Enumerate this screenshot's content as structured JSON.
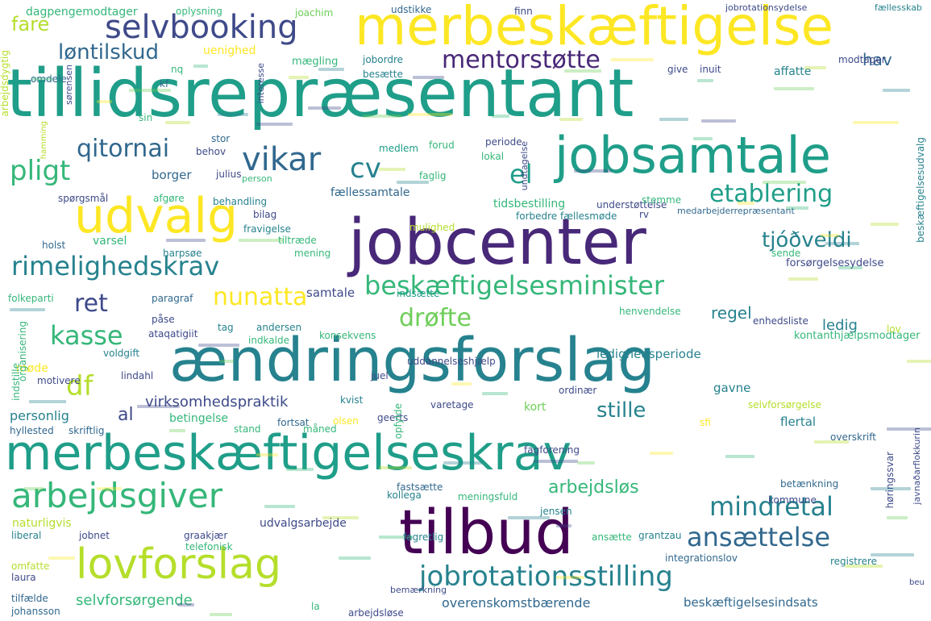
{
  "palette": {
    "dark_purple": "#440154",
    "purple": "#482878",
    "indigo": "#3e4a89",
    "blue": "#31688e",
    "teal": "#26828e",
    "teal_green": "#1f9e89",
    "green": "#35b779",
    "light_green": "#6ece58",
    "lime": "#b5de2b",
    "yellow": "#fde725"
  },
  "words": [
    {
      "text": "merbeskæftigelse",
      "color": "#fde725"
    },
    {
      "text": "tillidsrepræsentant",
      "color": "#1f9e89"
    },
    {
      "text": "selvbooking",
      "color": "#3e4a89"
    },
    {
      "text": "fare",
      "color": "#b5de2b"
    },
    {
      "text": "løntilskud",
      "color": "#31688e"
    },
    {
      "text": "mentorstøtte",
      "color": "#482878"
    },
    {
      "text": "hav",
      "color": "#31688e"
    },
    {
      "text": "uenighed",
      "color": "#fde725"
    },
    {
      "text": "mægling",
      "color": "#35b779"
    },
    {
      "text": "affatte",
      "color": "#26828e"
    },
    {
      "text": "jobsamtale",
      "color": "#1f9e89"
    },
    {
      "text": "qitornai",
      "color": "#31688e"
    },
    {
      "text": "vikar",
      "color": "#31688e"
    },
    {
      "text": "cv",
      "color": "#26828e"
    },
    {
      "text": "el",
      "color": "#1f9e89"
    },
    {
      "text": "pligt",
      "color": "#35b779"
    },
    {
      "text": "udvalg",
      "color": "#fde725"
    },
    {
      "text": "etablering",
      "color": "#1f9e89"
    },
    {
      "text": "borger",
      "color": "#31688e"
    },
    {
      "text": "jobcenter",
      "color": "#482878"
    },
    {
      "text": "tjóðveldi",
      "color": "#26828e"
    },
    {
      "text": "rimelighedskrav",
      "color": "#26828e"
    },
    {
      "text": "beskæftigelsesminister",
      "color": "#35b779"
    },
    {
      "text": "nunatta",
      "color": "#fde725"
    },
    {
      "text": "ret",
      "color": "#3e4a89"
    },
    {
      "text": "drøfte",
      "color": "#6ece58"
    },
    {
      "text": "kasse",
      "color": "#35b779"
    },
    {
      "text": "regel",
      "color": "#26828e"
    },
    {
      "text": "ledig",
      "color": "#26828e"
    },
    {
      "text": "ændringsforslag",
      "color": "#26828e"
    },
    {
      "text": "df",
      "color": "#b5de2b"
    },
    {
      "text": "virksomhedspraktik",
      "color": "#3e4a89"
    },
    {
      "text": "stille",
      "color": "#26828e"
    },
    {
      "text": "personlig",
      "color": "#26828e"
    },
    {
      "text": "merbeskæftigelseskrav",
      "color": "#1f9e89"
    },
    {
      "text": "arbejdsgiver",
      "color": "#35b779"
    },
    {
      "text": "arbejdsløs",
      "color": "#35b779"
    },
    {
      "text": "mindretal",
      "color": "#26828e"
    },
    {
      "text": "tilbud",
      "color": "#440154"
    },
    {
      "text": "ansættelse",
      "color": "#31688e"
    },
    {
      "text": "lovforslag",
      "color": "#b5de2b"
    },
    {
      "text": "jobrotationsstilling",
      "color": "#26828e"
    },
    {
      "text": "selvforsørgende",
      "color": "#35b779"
    },
    {
      "text": "overenskomstbærende",
      "color": "#31688e"
    },
    {
      "text": "beskæftigelsesindsats",
      "color": "#31688e"
    },
    {
      "text": "fællessamtale",
      "color": "#31688e"
    },
    {
      "text": "tidsbestilling",
      "color": "#35b779"
    },
    {
      "text": "faglig",
      "color": "#35b779"
    },
    {
      "text": "medlem",
      "color": "#1f9e89"
    },
    {
      "text": "varsel",
      "color": "#35b779"
    },
    {
      "text": "tiltræde",
      "color": "#35b779"
    },
    {
      "text": "samtale",
      "color": "#3e4a89"
    },
    {
      "text": "voldgift",
      "color": "#26828e"
    },
    {
      "text": "betingelse",
      "color": "#35b779"
    },
    {
      "text": "kort",
      "color": "#6ece58"
    },
    {
      "text": "gavne",
      "color": "#26828e"
    },
    {
      "text": "flertal",
      "color": "#26828e"
    },
    {
      "text": "udvalgsarbejde",
      "color": "#3e4a89"
    },
    {
      "text": "naturligvis",
      "color": "#b5de2b"
    },
    {
      "text": "kollega",
      "color": "#26828e"
    },
    {
      "text": "ledighedsperiode",
      "color": "#26828e"
    },
    {
      "text": "forsørgelsesydelse",
      "color": "#3e4a89"
    },
    {
      "text": "kontanthjælpsmodtager",
      "color": "#35b779"
    },
    {
      "text": "uddannelseshjælp",
      "color": "#3e4a89"
    },
    {
      "text": "understøttelse",
      "color": "#3e4a89"
    },
    {
      "text": "forbedre fællesmøde",
      "color": "#26828e"
    },
    {
      "text": "medarbejderrepræsentant",
      "color": "#31688e"
    },
    {
      "text": "overskrift",
      "color": "#31688e"
    },
    {
      "text": "fagforening",
      "color": "#3e4a89"
    },
    {
      "text": "fagretlig",
      "color": "#26828e"
    },
    {
      "text": "registrere",
      "color": "#26828e"
    },
    {
      "text": "integrationslov",
      "color": "#31688e"
    },
    {
      "text": "dagpengemodtager",
      "color": "#35b779"
    },
    {
      "text": "oplysning",
      "color": "#35b779"
    },
    {
      "text": "udstikke",
      "color": "#31688e"
    },
    {
      "text": "finn",
      "color": "#3e4a89"
    },
    {
      "text": "jobrotationsydelse",
      "color": "#3e4a89"
    },
    {
      "text": "fællesskab",
      "color": "#26828e"
    },
    {
      "text": "modtager",
      "color": "#3e4a89"
    },
    {
      "text": "inuit",
      "color": "#3e4a89"
    },
    {
      "text": "give",
      "color": "#3e4a89"
    },
    {
      "text": "jobordre",
      "color": "#26828e"
    },
    {
      "text": "besætte",
      "color": "#26828e"
    },
    {
      "text": "omdele",
      "color": "#31688e"
    },
    {
      "text": "kf",
      "color": "#31688e"
    },
    {
      "text": "nq",
      "color": "#35b779"
    },
    {
      "text": "sin",
      "color": "#35b779"
    },
    {
      "text": "stor",
      "color": "#31688e"
    },
    {
      "text": "behov",
      "color": "#3e4a89"
    },
    {
      "text": "forud",
      "color": "#35b779"
    },
    {
      "text": "periode",
      "color": "#3e4a89"
    },
    {
      "text": "lokal",
      "color": "#35b779"
    },
    {
      "text": "julius",
      "color": "#3e4a89"
    },
    {
      "text": "person",
      "color": "#35b779"
    },
    {
      "text": "spørgsmål",
      "color": "#3e4a89"
    },
    {
      "text": "afgøre",
      "color": "#35b779"
    },
    {
      "text": "behandling",
      "color": "#26828e"
    },
    {
      "text": "bilag",
      "color": "#3e4a89"
    },
    {
      "text": "fravigelse",
      "color": "#26828e"
    },
    {
      "text": "mulighed",
      "color": "#b5de2b"
    },
    {
      "text": "stemme",
      "color": "#35b779"
    },
    {
      "text": "rv",
      "color": "#3e4a89"
    },
    {
      "text": "holst",
      "color": "#31688e"
    },
    {
      "text": "harpsøe",
      "color": "#26828e"
    },
    {
      "text": "mening",
      "color": "#35b779"
    },
    {
      "text": "sende",
      "color": "#35b779"
    },
    {
      "text": "folkeparti",
      "color": "#35b779"
    },
    {
      "text": "paragraf",
      "color": "#31688e"
    },
    {
      "text": "påse",
      "color": "#3e4a89"
    },
    {
      "text": "tag",
      "color": "#26828e"
    },
    {
      "text": "andersen",
      "color": "#26828e"
    },
    {
      "text": "ataqatigiit",
      "color": "#3e4a89"
    },
    {
      "text": "indkalde",
      "color": "#35b779"
    },
    {
      "text": "konsekvens",
      "color": "#35b779"
    },
    {
      "text": "indsætte",
      "color": "#1f9e89"
    },
    {
      "text": "henvendelse",
      "color": "#35b779"
    },
    {
      "text": "enhedsliste",
      "color": "#3e4a89"
    },
    {
      "text": "lov",
      "color": "#b5de2b"
    },
    {
      "text": "møde",
      "color": "#fde725"
    },
    {
      "text": "motivere",
      "color": "#3e4a89"
    },
    {
      "text": "lindahl",
      "color": "#3e4a89"
    },
    {
      "text": "juel",
      "color": "#3e4a89"
    },
    {
      "text": "kvist",
      "color": "#26828e"
    },
    {
      "text": "varetage",
      "color": "#3e4a89"
    },
    {
      "text": "ordinær",
      "color": "#3e4a89"
    },
    {
      "text": "selvforsørgelse",
      "color": "#b5de2b"
    },
    {
      "text": "sfi",
      "color": "#fde725"
    },
    {
      "text": "hyllested",
      "color": "#31688e"
    },
    {
      "text": "skriftlig",
      "color": "#31688e"
    },
    {
      "text": "stand",
      "color": "#35b779"
    },
    {
      "text": "fortsat",
      "color": "#31688e"
    },
    {
      "text": "olsen",
      "color": "#fde725"
    },
    {
      "text": "geerts",
      "color": "#3e4a89"
    },
    {
      "text": "måned",
      "color": "#35b779"
    },
    {
      "text": "fastsætte",
      "color": "#31688e"
    },
    {
      "text": "meningsfuld",
      "color": "#35b779"
    },
    {
      "text": "jensen",
      "color": "#26828e"
    },
    {
      "text": "ansætte",
      "color": "#35b779"
    },
    {
      "text": "grantzau",
      "color": "#26828e"
    },
    {
      "text": "betænkning",
      "color": "#31688e"
    },
    {
      "text": "kommune",
      "color": "#3e4a89"
    },
    {
      "text": "graakjær",
      "color": "#3e4a89"
    },
    {
      "text": "telefonisk",
      "color": "#35b779"
    },
    {
      "text": "liberal",
      "color": "#26828e"
    },
    {
      "text": "jobnet",
      "color": "#3e4a89"
    },
    {
      "text": "omfatte",
      "color": "#b5de2b"
    },
    {
      "text": "laura",
      "color": "#3e4a89"
    },
    {
      "text": "tilfælde",
      "color": "#31688e"
    },
    {
      "text": "johansson",
      "color": "#31688e"
    },
    {
      "text": "la",
      "color": "#35b779"
    },
    {
      "text": "arbejdsløse",
      "color": "#3e4a89"
    },
    {
      "text": "bemærkning",
      "color": "#3e4a89"
    },
    {
      "text": "joachim",
      "color": "#6ece58"
    },
    {
      "text": "al",
      "color": "#3e4a89"
    },
    {
      "text": "beu",
      "color": "#3e4a89"
    }
  ],
  "vertical_words": [
    {
      "text": "arbejdsdygtig",
      "color": "#b5de2b"
    },
    {
      "text": "interesse",
      "color": "#3e4a89"
    },
    {
      "text": "undtagelse",
      "color": "#3e4a89"
    },
    {
      "text": "organisering",
      "color": "#35b779"
    },
    {
      "text": "indstille",
      "color": "#35b779"
    },
    {
      "text": "opfylde",
      "color": "#35b779"
    },
    {
      "text": "høringssvar",
      "color": "#3e4a89"
    },
    {
      "text": "beskæftigelsesudvalg",
      "color": "#26828e"
    },
    {
      "text": "javnaðarflokkurin",
      "color": "#3e4a89"
    },
    {
      "text": "sørensen",
      "color": "#3e4a89"
    },
    {
      "text": "hamming",
      "color": "#b5de2b"
    }
  ]
}
